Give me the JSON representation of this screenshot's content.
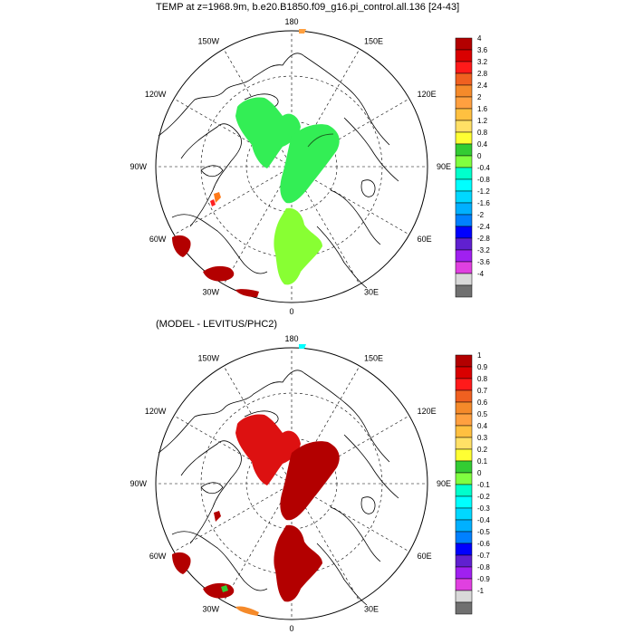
{
  "top_title": "TEMP at z=1968.9m, b.e20.B1850.f09_g16.pi_control.all.136 [24-43]",
  "bottom_title": "(MODEL - LEVITUS/PHC2)",
  "lon_labels": {
    "n180": "180",
    "n150w": "150W",
    "n150e": "150E",
    "n120w": "120W",
    "n120e": "120E",
    "n90w": "90W",
    "n90e": "90E",
    "n60w": "60W",
    "n60e": "60E",
    "n30w": "30W",
    "n30e": "30E",
    "n0": "0"
  },
  "top_colorbar": {
    "labels": [
      "4",
      "3.6",
      "3.2",
      "2.8",
      "2.4",
      "2",
      "1.6",
      "1.2",
      "0.8",
      "0.4",
      "0",
      "-0.4",
      "-0.8",
      "-1.2",
      "-1.6",
      "-2",
      "-2.4",
      "-2.8",
      "-3.2",
      "-3.6",
      "-4"
    ]
  },
  "bottom_colorbar": {
    "labels": [
      "1",
      "0.9",
      "0.8",
      "0.7",
      "0.6",
      "0.5",
      "0.4",
      "0.3",
      "0.2",
      "0.1",
      "0",
      "-0.1",
      "-0.2",
      "-0.3",
      "-0.4",
      "-0.5",
      "-0.6",
      "-0.7",
      "-0.8",
      "-0.9",
      "-1"
    ]
  },
  "palette": [
    "#b30000",
    "#d90000",
    "#ff1a1a",
    "#f06020",
    "#f58a2a",
    "#ffa040",
    "#ffc040",
    "#ffe066",
    "#ffff33",
    "#33cc33",
    "#80ff40",
    "#00ffcc",
    "#00ffff",
    "#00d8ff",
    "#00b0ff",
    "#0080ff",
    "#0000ff",
    "#6020d0",
    "#a020f0",
    "#e040e0",
    "#d9d9d9",
    "#707070"
  ],
  "colors": {
    "top_fill_green": "#33ee55",
    "top_fill_lightgreen": "#88ff33",
    "bottom_fill_red": "#dd1111",
    "bottom_fill_darkred": "#b30000"
  }
}
